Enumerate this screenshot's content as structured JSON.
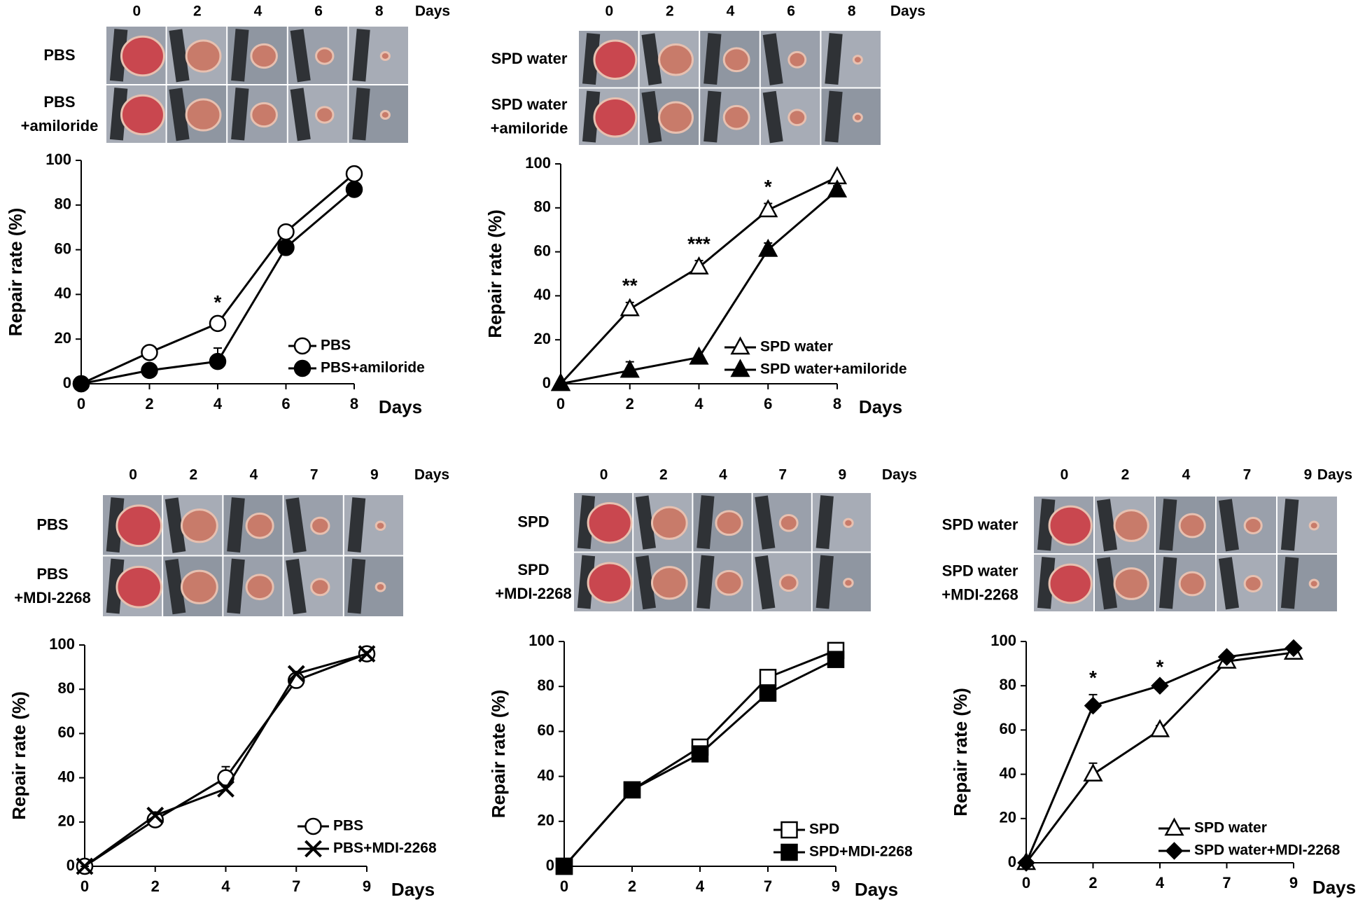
{
  "chart_data": [
    {
      "type": "line",
      "categories": [
        "0",
        "2",
        "4",
        "6",
        "8"
      ],
      "xlabel": "Days",
      "ylabel": "Repair rate (%)",
      "ylim": [
        0,
        100
      ],
      "yticks": [
        0,
        20,
        40,
        60,
        80,
        100
      ],
      "legend": "lower right",
      "photo_days": [
        "0",
        "2",
        "4",
        "6",
        "8"
      ],
      "photo_days_unit": "Days",
      "photo_rows": [
        [
          "PBS"
        ],
        [
          "PBS",
          "+amiloride"
        ]
      ],
      "annotations": [
        {
          "x": "4",
          "text": "*"
        }
      ],
      "series": [
        {
          "name": "PBS",
          "color": "#000000",
          "marker": "circle-open",
          "values": [
            0,
            14,
            27,
            68,
            94
          ],
          "errors": [
            0,
            1,
            2,
            2,
            1
          ]
        },
        {
          "name": "PBS+amiloride",
          "color": "#000000",
          "marker": "circle-filled",
          "values": [
            0,
            6,
            10,
            61,
            87
          ],
          "errors": [
            0,
            1,
            6,
            1,
            1
          ]
        }
      ]
    },
    {
      "type": "line",
      "categories": [
        "0",
        "2",
        "4",
        "6",
        "8"
      ],
      "xlabel": "Days",
      "ylabel": "Repair rate (%)",
      "ylim": [
        0,
        100
      ],
      "yticks": [
        0,
        20,
        40,
        60,
        80,
        100
      ],
      "legend": "lower right",
      "photo_days": [
        "0",
        "2",
        "4",
        "6",
        "8"
      ],
      "photo_days_unit": "Days",
      "photo_rows": [
        [
          "SPD water"
        ],
        [
          "SPD water",
          "+amiloride"
        ]
      ],
      "annotations": [
        {
          "x": "2",
          "text": "**"
        },
        {
          "x": "4",
          "text": "***"
        },
        {
          "x": "6",
          "text": "*"
        }
      ],
      "series": [
        {
          "name": "SPD water",
          "color": "#000000",
          "marker": "triangle-open",
          "values": [
            0,
            34,
            53,
            79,
            94
          ],
          "errors": [
            0,
            3,
            3,
            3,
            1
          ]
        },
        {
          "name": "SPD water+amiloride",
          "color": "#000000",
          "marker": "triangle-filled",
          "values": [
            0,
            6,
            12,
            61,
            88
          ],
          "errors": [
            0,
            4,
            1,
            3,
            2
          ]
        }
      ]
    },
    {
      "type": "line",
      "categories": [
        "0",
        "2",
        "4",
        "7",
        "9"
      ],
      "xlabel": "Days",
      "ylabel": "Repair rate (%)",
      "ylim": [
        0,
        100
      ],
      "yticks": [
        0,
        20,
        40,
        60,
        80,
        100
      ],
      "legend": "lower right",
      "photo_days": [
        "0",
        "2",
        "4",
        "7",
        "9"
      ],
      "photo_days_unit": "Days",
      "photo_rows": [
        [
          "PBS"
        ],
        [
          "PBS",
          "+MDI-2268"
        ]
      ],
      "annotations": [],
      "series": [
        {
          "name": "PBS",
          "color": "#000000",
          "marker": "circle-open",
          "values": [
            0,
            21,
            40,
            84,
            96
          ],
          "errors": [
            0,
            2,
            5,
            2,
            1
          ]
        },
        {
          "name": "PBS+MDI-2268",
          "color": "#000000",
          "marker": "x",
          "values": [
            0,
            23,
            35,
            87,
            96
          ],
          "errors": [
            0,
            1,
            1,
            1,
            1
          ]
        }
      ]
    },
    {
      "type": "line",
      "categories": [
        "0",
        "2",
        "4",
        "7",
        "9"
      ],
      "xlabel": "Days",
      "ylabel": "Repair rate (%)",
      "ylim": [
        0,
        100
      ],
      "yticks": [
        0,
        20,
        40,
        60,
        80,
        100
      ],
      "legend": "lower right",
      "photo_days": [
        "0",
        "2",
        "4",
        "7",
        "9"
      ],
      "photo_days_unit": "Days",
      "photo_rows": [
        [
          "SPD"
        ],
        [
          "SPD",
          "+MDI-2268"
        ]
      ],
      "annotations": [],
      "series": [
        {
          "name": "SPD",
          "color": "#000000",
          "marker": "square-open",
          "values": [
            0,
            34,
            53,
            84,
            96
          ],
          "errors": [
            0,
            2,
            1,
            1,
            1
          ]
        },
        {
          "name": "SPD+MDI-2268",
          "color": "#000000",
          "marker": "square-filled",
          "values": [
            0,
            34,
            50,
            77,
            92
          ],
          "errors": [
            0,
            3,
            1,
            1,
            1
          ]
        }
      ]
    },
    {
      "type": "line",
      "categories": [
        "0",
        "2",
        "4",
        "7",
        "9"
      ],
      "xlabel": "Days",
      "ylabel": "Repair rate (%)",
      "ylim": [
        0,
        100
      ],
      "yticks": [
        0,
        20,
        40,
        60,
        80,
        100
      ],
      "legend": "lower right",
      "photo_days": [
        "0",
        "2",
        "4",
        "7",
        "9"
      ],
      "photo_days_unit": "Days",
      "photo_rows": [
        [
          "SPD water"
        ],
        [
          "SPD water",
          "+MDI-2268"
        ]
      ],
      "annotations": [
        {
          "x": "2",
          "text": "*"
        },
        {
          "x": "4",
          "text": "*"
        }
      ],
      "series": [
        {
          "name": "SPD water",
          "color": "#000000",
          "marker": "triangle-open",
          "values": [
            0,
            40,
            60,
            91,
            95
          ],
          "errors": [
            0,
            5,
            2,
            1,
            1
          ]
        },
        {
          "name": "SPD water+MDI-2268",
          "color": "#000000",
          "marker": "diamond-filled",
          "values": [
            0,
            71,
            80,
            93,
            97
          ],
          "errors": [
            0,
            5,
            1,
            1,
            1
          ]
        }
      ]
    }
  ]
}
